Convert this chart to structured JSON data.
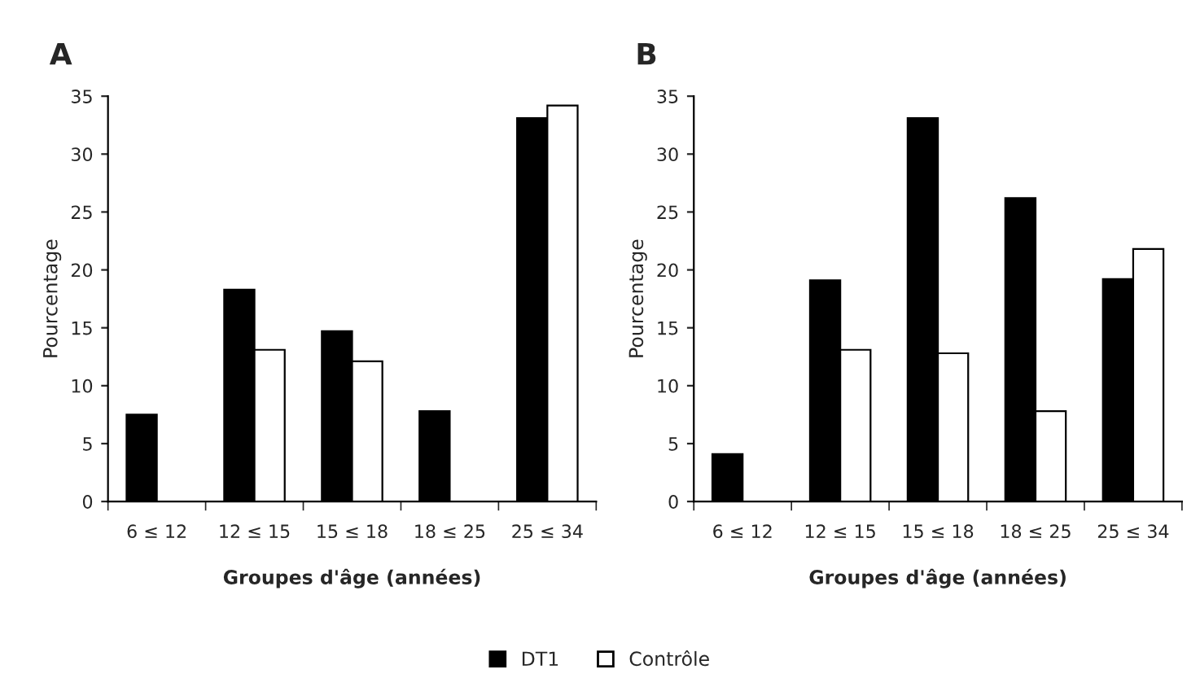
{
  "chart_data": [
    {
      "type": "bar",
      "title": "A",
      "xlabel": "Groupes d'âge (années)",
      "ylabel": "Pourcentage",
      "categories": [
        "6 ≤ 12",
        "12 ≤ 15",
        "15 ≤ 18",
        "18 ≤ 25",
        "25 ≤ 34"
      ],
      "series": [
        {
          "color": "#000000",
          "values": [
            7.5,
            18.3,
            14.7,
            7.8,
            33.1
          ]
        },
        {
          "color": "#ffffff",
          "values": [
            null,
            13.1,
            12.1,
            null,
            34.2
          ]
        }
      ],
      "ylim": [
        0,
        35
      ],
      "yticks": [
        0,
        5,
        10,
        15,
        20,
        25,
        30,
        35
      ],
      "grid": false
    },
    {
      "type": "bar",
      "title": "B",
      "xlabel": "Groupes d'âge (années)",
      "ylabel": "Pourcentage",
      "categories": [
        "6 ≤ 12",
        "12 ≤ 15",
        "15 ≤ 18",
        "18 ≤ 25",
        "25 ≤ 34"
      ],
      "series": [
        {
          "name": "DT1",
          "color": "#000000",
          "values": [
            4.1,
            19.1,
            33.1,
            26.2,
            19.2
          ]
        },
        {
          "name": "Contrôle",
          "color": "#ffffff",
          "values": [
            null,
            13.1,
            12.8,
            7.8,
            21.8
          ]
        }
      ],
      "ylim": [
        0,
        35
      ],
      "yticks": [
        0,
        5,
        10,
        15,
        20,
        25,
        30,
        35
      ],
      "grid": false,
      "legend": "bottom"
    }
  ]
}
